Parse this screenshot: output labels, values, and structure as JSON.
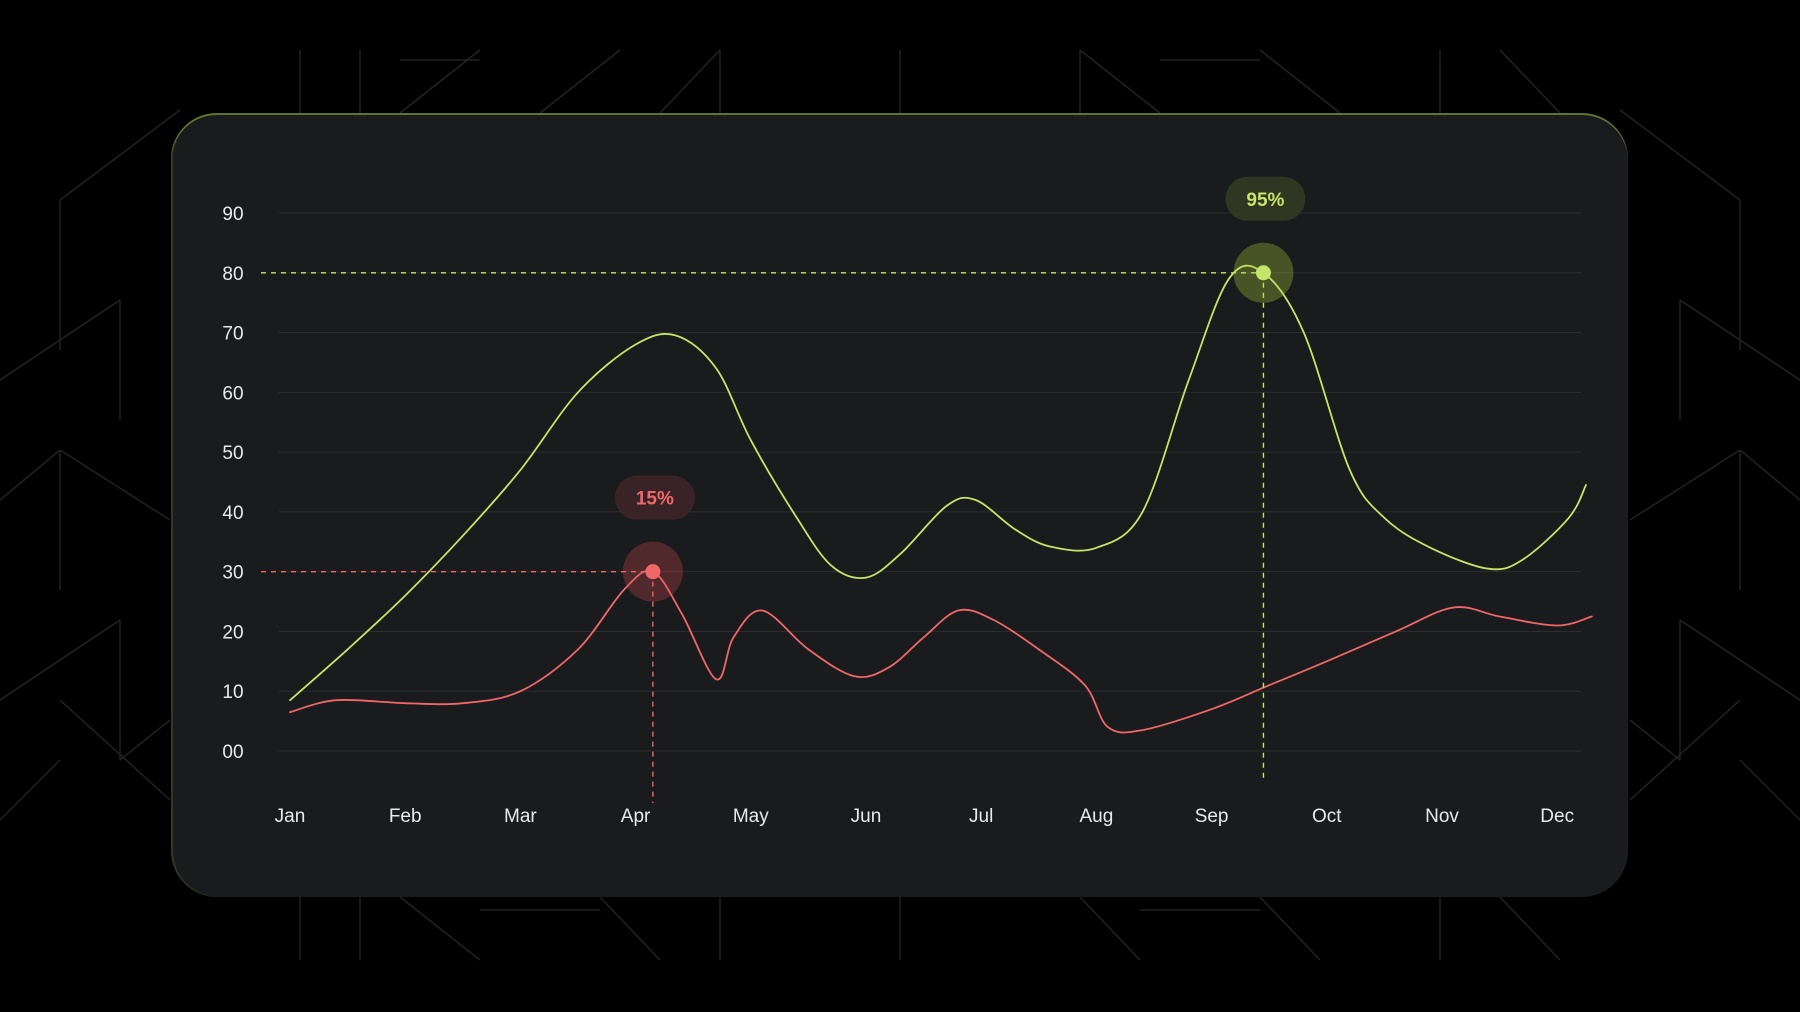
{
  "chart_data": {
    "type": "line",
    "title": "",
    "xlabel": "",
    "ylabel": "",
    "categories": [
      "Jan",
      "Feb",
      "Mar",
      "Apr",
      "May",
      "Jun",
      "Jul",
      "Aug",
      "Sep",
      "Oct",
      "Nov",
      "Dec"
    ],
    "y_ticks": [
      "00",
      "10",
      "20",
      "30",
      "40",
      "50",
      "60",
      "70",
      "80",
      "90"
    ],
    "ylim": [
      0,
      90
    ],
    "grid": true,
    "legend": "none",
    "series": [
      {
        "color": "#c7e46a",
        "points": [
          [
            0.0,
            8.5
          ],
          [
            0.5,
            17
          ],
          [
            1.0,
            26
          ],
          [
            1.5,
            36
          ],
          [
            2.0,
            47
          ],
          [
            2.5,
            60
          ],
          [
            3.0,
            68
          ],
          [
            3.35,
            69.5
          ],
          [
            3.7,
            64
          ],
          [
            4.0,
            52
          ],
          [
            4.4,
            39
          ],
          [
            4.7,
            31
          ],
          [
            5.0,
            29
          ],
          [
            5.3,
            33
          ],
          [
            5.7,
            41
          ],
          [
            5.95,
            42
          ],
          [
            6.3,
            37
          ],
          [
            6.6,
            34.2
          ],
          [
            7.0,
            34
          ],
          [
            7.4,
            40
          ],
          [
            7.8,
            62
          ],
          [
            8.15,
            79
          ],
          [
            8.45,
            80
          ],
          [
            8.8,
            70
          ],
          [
            9.2,
            47
          ],
          [
            9.5,
            39
          ],
          [
            9.9,
            34
          ],
          [
            10.4,
            30.5
          ],
          [
            10.7,
            32
          ],
          [
            11.1,
            39
          ],
          [
            11.25,
            44.5
          ]
        ]
      },
      {
        "color": "#f0676a",
        "points": [
          [
            0.0,
            6.5
          ],
          [
            0.4,
            8.5
          ],
          [
            1.0,
            8
          ],
          [
            1.5,
            8
          ],
          [
            2.0,
            10
          ],
          [
            2.5,
            17
          ],
          [
            2.9,
            27
          ],
          [
            3.15,
            30
          ],
          [
            3.4,
            23
          ],
          [
            3.7,
            12
          ],
          [
            3.85,
            19
          ],
          [
            4.1,
            23.5
          ],
          [
            4.5,
            17
          ],
          [
            4.9,
            12.5
          ],
          [
            5.2,
            14
          ],
          [
            5.5,
            19
          ],
          [
            5.8,
            23.5
          ],
          [
            6.1,
            22
          ],
          [
            6.5,
            17
          ],
          [
            6.9,
            11
          ],
          [
            7.1,
            4
          ],
          [
            7.4,
            3.5
          ],
          [
            8.0,
            7
          ],
          [
            8.5,
            11
          ],
          [
            9.0,
            15
          ],
          [
            9.6,
            20
          ],
          [
            10.1,
            24
          ],
          [
            10.5,
            22.5
          ],
          [
            11.0,
            21
          ],
          [
            11.3,
            22.5
          ]
        ]
      }
    ],
    "callouts": [
      {
        "label": "95%",
        "x": 8.45,
        "y": 80,
        "color": "#c7e46a",
        "bubble_color": "#2f3622",
        "halo_color": "rgba(178,220,60,0.30)"
      },
      {
        "label": "15%",
        "x": 3.15,
        "y": 30,
        "color": "#f0676a",
        "bubble_color": "#3a2326",
        "halo_color": "rgba(240,80,90,0.26)"
      }
    ]
  },
  "colors": {
    "background": "#000000",
    "card": "#1a1b1d",
    "gridline": "#2c2d30",
    "tick_text": "#e9e9ea",
    "pattern_line": "#1f2420"
  }
}
